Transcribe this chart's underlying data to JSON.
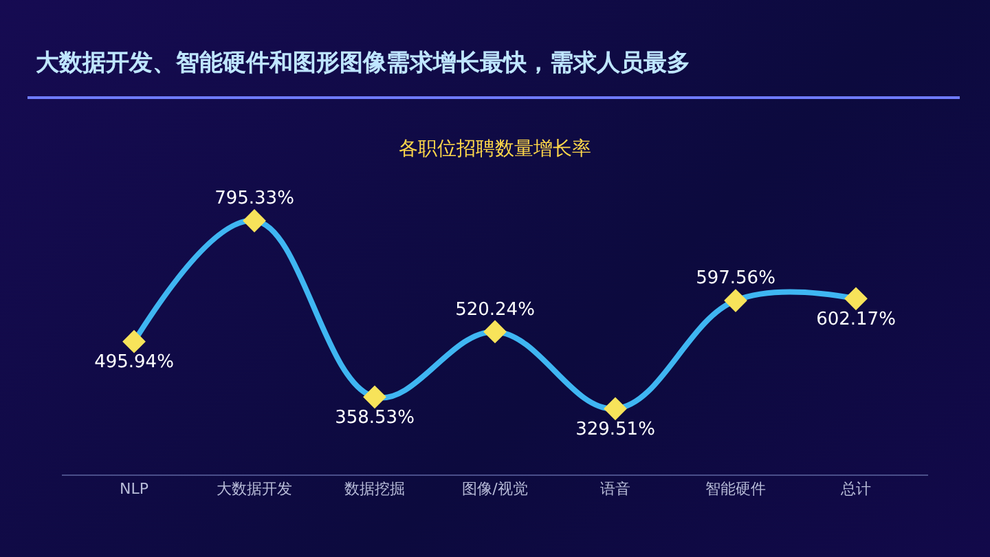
{
  "chart_data": {
    "type": "line",
    "title": "大数据开发、智能硬件和图形图像需求增长最快，需求人员最多",
    "subtitle": "各职位招聘数量增长率",
    "categories": [
      "NLP",
      "大数据开发",
      "数据挖掘",
      "图像/视觉",
      "语音",
      "智能硬件",
      "总计"
    ],
    "series": [
      {
        "color": "#3fb6f2",
        "values": [
          495.94,
          795.33,
          358.53,
          520.24,
          329.51,
          597.56,
          602.17
        ],
        "value_labels": [
          "495.94%",
          "795.33%",
          "358.53%",
          "520.24%",
          "329.51%",
          "597.56%",
          "602.17%"
        ]
      }
    ],
    "marker": "diamond",
    "line_style": "solid",
    "grid": false,
    "legend": false,
    "tick_labels": "x"
  }
}
